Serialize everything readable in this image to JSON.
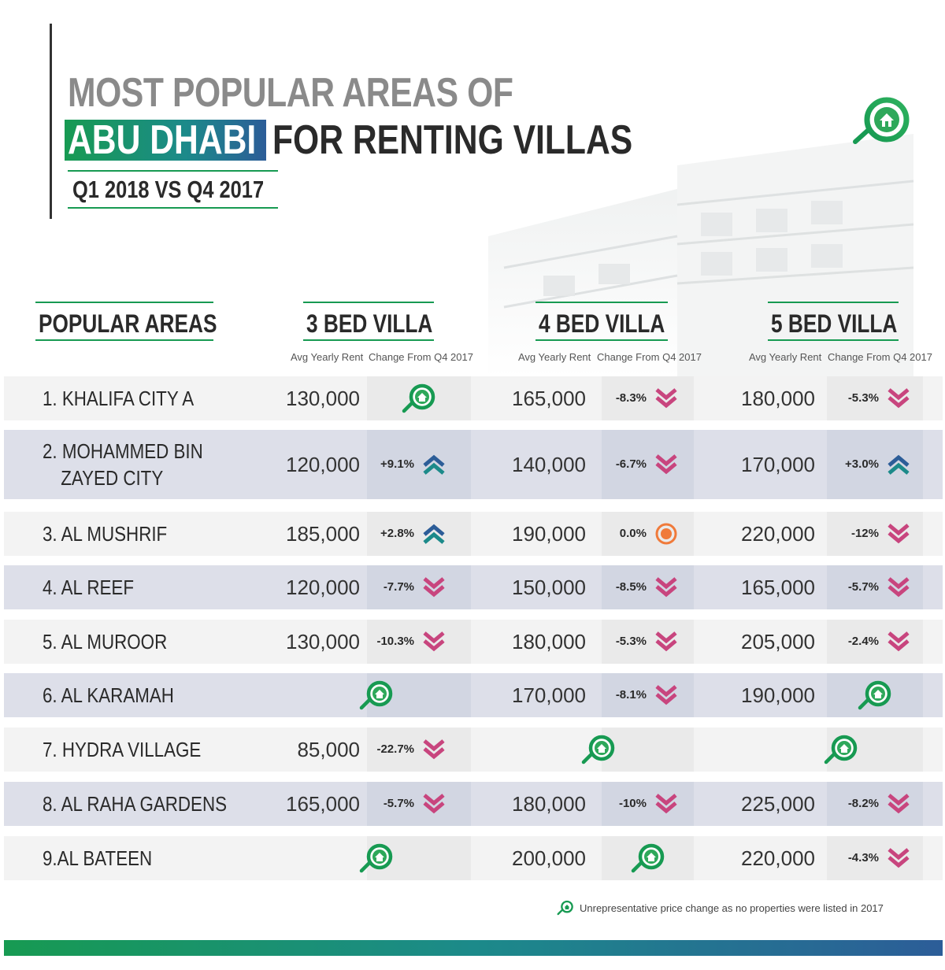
{
  "header": {
    "title_line1": "MOST POPULAR AREAS OF",
    "title_highlight": "ABU DHABI",
    "title_line2_rest": "FOR RENTING VILLAS",
    "subtitle": "Q1 2018 VS Q4 2017"
  },
  "columns": {
    "areas": "POPULAR AREAS",
    "bed3": "3 BED VILLA",
    "bed4": "4 BED VILLA",
    "bed5": "5 BED VILLA",
    "rent_label": "Avg Yearly Rent",
    "change_label": "Change From Q4 2017"
  },
  "colors": {
    "green": "#179a52",
    "teal": "#1c8a8a",
    "blue": "#2c5d98",
    "down_pink": "#c8457e",
    "up_blue": "#2c5d98",
    "neutral_orange": "#f07a3a"
  },
  "legend": {
    "icon": "house-magnifier-icon",
    "text": "Unrepresentative price change as no properties were listed in 2017"
  },
  "chart_data": {
    "type": "table",
    "title": "MOST POPULAR AREAS OF ABU DHABI FOR RENTING VILLAS",
    "subtitle": "Q1 2018 VS Q4 2017",
    "columns": [
      "POPULAR AREAS",
      "3 BED VILLA",
      "4 BED VILLA",
      "5 BED VILLA"
    ],
    "sub_columns": [
      "Avg Yearly Rent",
      "Change From Q4 2017"
    ],
    "rows": [
      {
        "area": "1. KHALIFA CITY A",
        "bed3": {
          "rent": "130,000",
          "change": "",
          "trend": "unrepresentative"
        },
        "bed4": {
          "rent": "165,000",
          "change": "-8.3%",
          "trend": "down"
        },
        "bed5": {
          "rent": "180,000",
          "change": "-5.3%",
          "trend": "down"
        }
      },
      {
        "area": "2. MOHAMMED BIN ZAYED CITY",
        "bed3": {
          "rent": "120,000",
          "change": "+9.1%",
          "trend": "up"
        },
        "bed4": {
          "rent": "140,000",
          "change": "-6.7%",
          "trend": "down"
        },
        "bed5": {
          "rent": "170,000",
          "change": "+3.0%",
          "trend": "up"
        }
      },
      {
        "area": "3. AL MUSHRIF",
        "bed3": {
          "rent": "185,000",
          "change": "+2.8%",
          "trend": "up"
        },
        "bed4": {
          "rent": "190,000",
          "change": "0.0%",
          "trend": "neutral"
        },
        "bed5": {
          "rent": "220,000",
          "change": "-12%",
          "trend": "down"
        }
      },
      {
        "area": "4. AL REEF",
        "bed3": {
          "rent": "120,000",
          "change": "-7.7%",
          "trend": "down"
        },
        "bed4": {
          "rent": "150,000",
          "change": "-8.5%",
          "trend": "down"
        },
        "bed5": {
          "rent": "165,000",
          "change": "-5.7%",
          "trend": "down"
        }
      },
      {
        "area": "5. AL MUROOR",
        "bed3": {
          "rent": "130,000",
          "change": "-10.3%",
          "trend": "down"
        },
        "bed4": {
          "rent": "180,000",
          "change": "-5.3%",
          "trend": "down"
        },
        "bed5": {
          "rent": "205,000",
          "change": "-2.4%",
          "trend": "down"
        }
      },
      {
        "area": "6. AL KARAMAH",
        "bed3": {
          "rent": "",
          "change": "",
          "trend": "unrepresentative"
        },
        "bed4": {
          "rent": "170,000",
          "change": "-8.1%",
          "trend": "down"
        },
        "bed5": {
          "rent": "190,000",
          "change": "",
          "trend": "unrepresentative"
        }
      },
      {
        "area": "7. HYDRA VILLAGE",
        "bed3": {
          "rent": "85,000",
          "change": "-22.7%",
          "trend": "down"
        },
        "bed4": {
          "rent": "",
          "change": "",
          "trend": "unrepresentative"
        },
        "bed5": {
          "rent": "",
          "change": "",
          "trend": "unrepresentative"
        }
      },
      {
        "area": "8. AL RAHA GARDENS",
        "bed3": {
          "rent": "165,000",
          "change": "-5.7%",
          "trend": "down"
        },
        "bed4": {
          "rent": "180,000",
          "change": "-10%",
          "trend": "down"
        },
        "bed5": {
          "rent": "225,000",
          "change": "-8.2%",
          "trend": "down"
        }
      },
      {
        "area": "9.AL BATEEN",
        "bed3": {
          "rent": "",
          "change": "",
          "trend": "unrepresentative"
        },
        "bed4": {
          "rent": "200,000",
          "change": "",
          "trend": "unrepresentative"
        },
        "bed5": {
          "rent": "220,000",
          "change": "-4.3%",
          "trend": "down"
        }
      }
    ]
  }
}
